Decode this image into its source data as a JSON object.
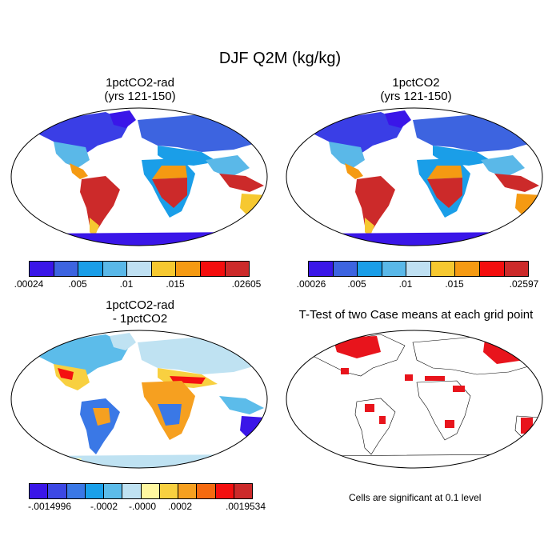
{
  "figure": {
    "title": "DJF Q2M (kg/kg)",
    "footnote": "Cells are significant at 0.1 level"
  },
  "panels": [
    {
      "title_line1": "1pctCO2-rad",
      "title_line2": "(yrs 121-150)",
      "colorbar": {
        "colors": [
          "#3a16e8",
          "#3d64e0",
          "#1a9ee8",
          "#5ab8e8",
          "#bfe0f2",
          "#f6c830",
          "#f59a12",
          "#f40e0e",
          "#cc2a2a"
        ],
        "tick_labels": [
          ".00024",
          ".005",
          ".01",
          ".015",
          ".02605"
        ]
      }
    },
    {
      "title_line1": "1pctCO2",
      "title_line2": "(yrs 121-150)",
      "colorbar": {
        "colors": [
          "#3a16e8",
          "#3d64e0",
          "#1a9ee8",
          "#5ab8e8",
          "#bfe0f2",
          "#f6c830",
          "#f59a12",
          "#f40e0e",
          "#cc2a2a"
        ],
        "tick_labels": [
          ".00026",
          ".005",
          ".01",
          ".015",
          ".02597"
        ]
      }
    },
    {
      "title_line1": "1pctCO2-rad",
      "title_line2": "- 1pctCO2",
      "colorbar": {
        "colors": [
          "#3a16e8",
          "#3c48e4",
          "#3a78e6",
          "#1aa0ea",
          "#5cbcea",
          "#bfe2f2",
          "#fff7a0",
          "#f8d040",
          "#f6a020",
          "#f56a10",
          "#f41010",
          "#cc2a2a"
        ],
        "tick_labels": [
          "-.0014996",
          "-.0002",
          "-.0000",
          ".0002",
          ".0019534"
        ]
      }
    },
    {
      "title_line1": "T-Test of two Case means at each grid point",
      "title_line2": ""
    }
  ]
}
